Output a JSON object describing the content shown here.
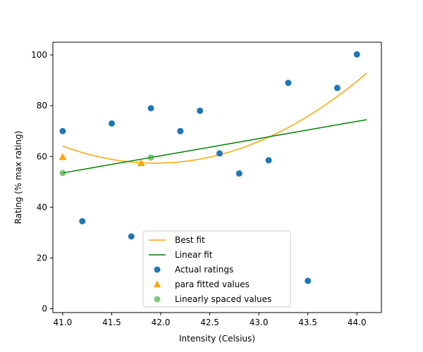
{
  "chart_data": {
    "type": "scatter",
    "title": "",
    "xlabel": "Intensity (Celsius)",
    "ylabel": "Rating (% max rating)",
    "xlim": [
      40.9,
      44.25
    ],
    "ylim": [
      -1.5,
      105
    ],
    "x_ticks": [
      "41.0",
      "41.5",
      "42.0",
      "42.5",
      "43.0",
      "43.5",
      "44.0"
    ],
    "y_ticks": [
      "0",
      "20",
      "40",
      "60",
      "80",
      "100"
    ],
    "grid": false,
    "legend_position": "lower-center",
    "colors": {
      "best_fit": "#ffa500",
      "linear_fit": "#008000",
      "actual": "#1f77b4",
      "para_fitted": "#ffa500",
      "linear_spaced": "#2ca02c"
    },
    "series": [
      {
        "name": "Best fit",
        "kind": "line",
        "coefficients": {
          "a": 7.6,
          "b": -637.5,
          "c": 13426
        },
        "x_range": [
          41.0,
          44.1
        ]
      },
      {
        "name": "Linear fit",
        "kind": "line",
        "x": [
          41.0,
          44.1
        ],
        "y": [
          53.5,
          74.5
        ]
      },
      {
        "name": "Actual ratings",
        "kind": "scatter",
        "marker": "circle",
        "points": [
          {
            "x": 41.0,
            "y": 70
          },
          {
            "x": 41.2,
            "y": 34.5
          },
          {
            "x": 41.5,
            "y": 73
          },
          {
            "x": 41.7,
            "y": 28.5
          },
          {
            "x": 41.9,
            "y": 79
          },
          {
            "x": 42.2,
            "y": 70
          },
          {
            "x": 42.4,
            "y": 78
          },
          {
            "x": 42.6,
            "y": 61.2
          },
          {
            "x": 42.8,
            "y": 53.3
          },
          {
            "x": 43.1,
            "y": 58.5
          },
          {
            "x": 43.3,
            "y": 89
          },
          {
            "x": 43.5,
            "y": 11
          },
          {
            "x": 43.8,
            "y": 87
          },
          {
            "x": 44.0,
            "y": 100.2
          }
        ]
      },
      {
        "name": "para fitted values",
        "kind": "scatter",
        "marker": "triangle",
        "points": [
          {
            "x": 41.0,
            "y": 59.8
          },
          {
            "x": 41.8,
            "y": 57.4
          }
        ]
      },
      {
        "name": "Linearly spaced values",
        "kind": "scatter",
        "marker": "circle-translucent",
        "points": [
          {
            "x": 41.0,
            "y": 53.5
          },
          {
            "x": 41.9,
            "y": 59.6
          }
        ]
      }
    ]
  }
}
